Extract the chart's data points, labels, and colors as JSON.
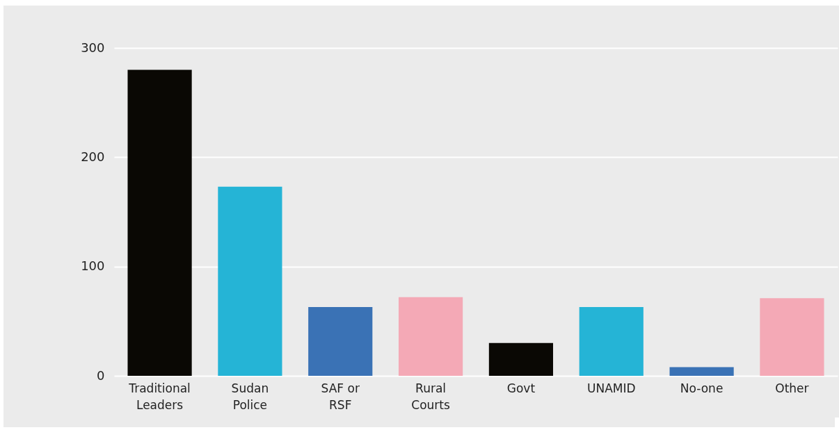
{
  "chart_data": {
    "type": "bar",
    "categories": [
      "Traditional\nLeaders",
      "Sudan\nPolice",
      "SAF or\nRSF",
      "Rural\nCourts",
      "Govt",
      "UNAMID",
      "No-one",
      "Other"
    ],
    "values": [
      280,
      173,
      63,
      72,
      30,
      63,
      8,
      71
    ],
    "colors": [
      "#0a0804",
      "#25b4d6",
      "#3a72b5",
      "#f4a9b6",
      "#0a0804",
      "#25b4d6",
      "#3a72b5",
      "#f4a9b6"
    ],
    "ylim": [
      0,
      300
    ],
    "yticks": [
      0,
      100,
      200,
      300
    ],
    "grid": "y"
  }
}
